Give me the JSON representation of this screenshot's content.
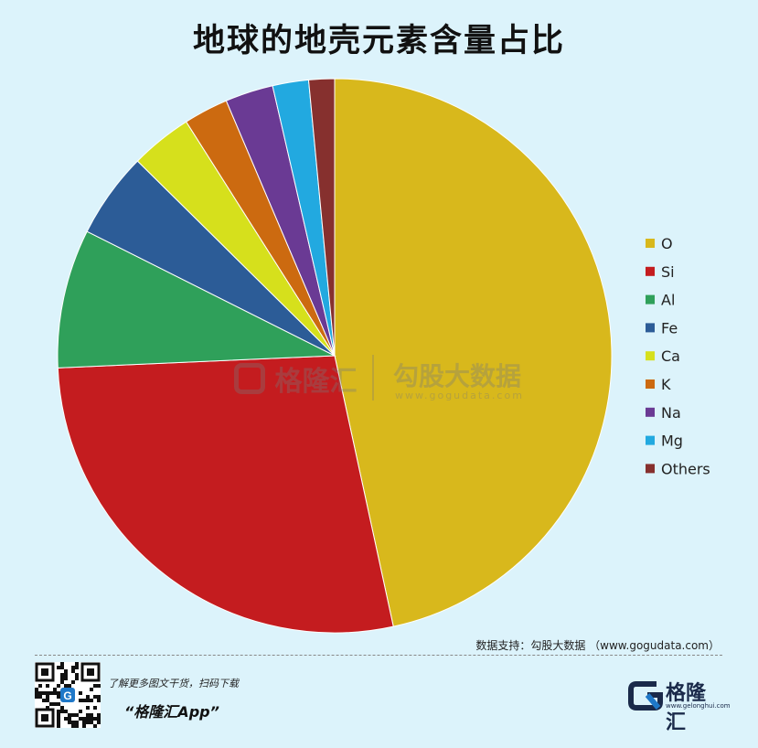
{
  "title": "地球的地壳元素含量占比",
  "chart_data": {
    "type": "pie",
    "title": "地球的地壳元素含量占比",
    "labels": [
      "O",
      "Si",
      "Al",
      "Fe",
      "Ca",
      "K",
      "Na",
      "Mg",
      "Others"
    ],
    "values": [
      46.6,
      27.7,
      8.1,
      5.0,
      3.6,
      2.6,
      2.8,
      2.1,
      1.5
    ],
    "colors": [
      "#d8b81c",
      "#c41c1f",
      "#2fa05a",
      "#2c5c97",
      "#d6e01c",
      "#cc6a10",
      "#6a3a94",
      "#22a9e0",
      "#86302e"
    ],
    "legend_position": "right"
  },
  "watermark": {
    "brand": "格隆汇",
    "brand_right": "勾股大数据",
    "url": "www.gogudata.com"
  },
  "footer": {
    "source": "数据支持：勾股大数据 （www.gogudata.com）",
    "promo_line1": "了解更多图文干货，扫码下载",
    "promo_line2": "“格隆汇App”",
    "logo_text": "格隆汇",
    "logo_url": "www.gelonghui.com",
    "qr_label": "G"
  }
}
